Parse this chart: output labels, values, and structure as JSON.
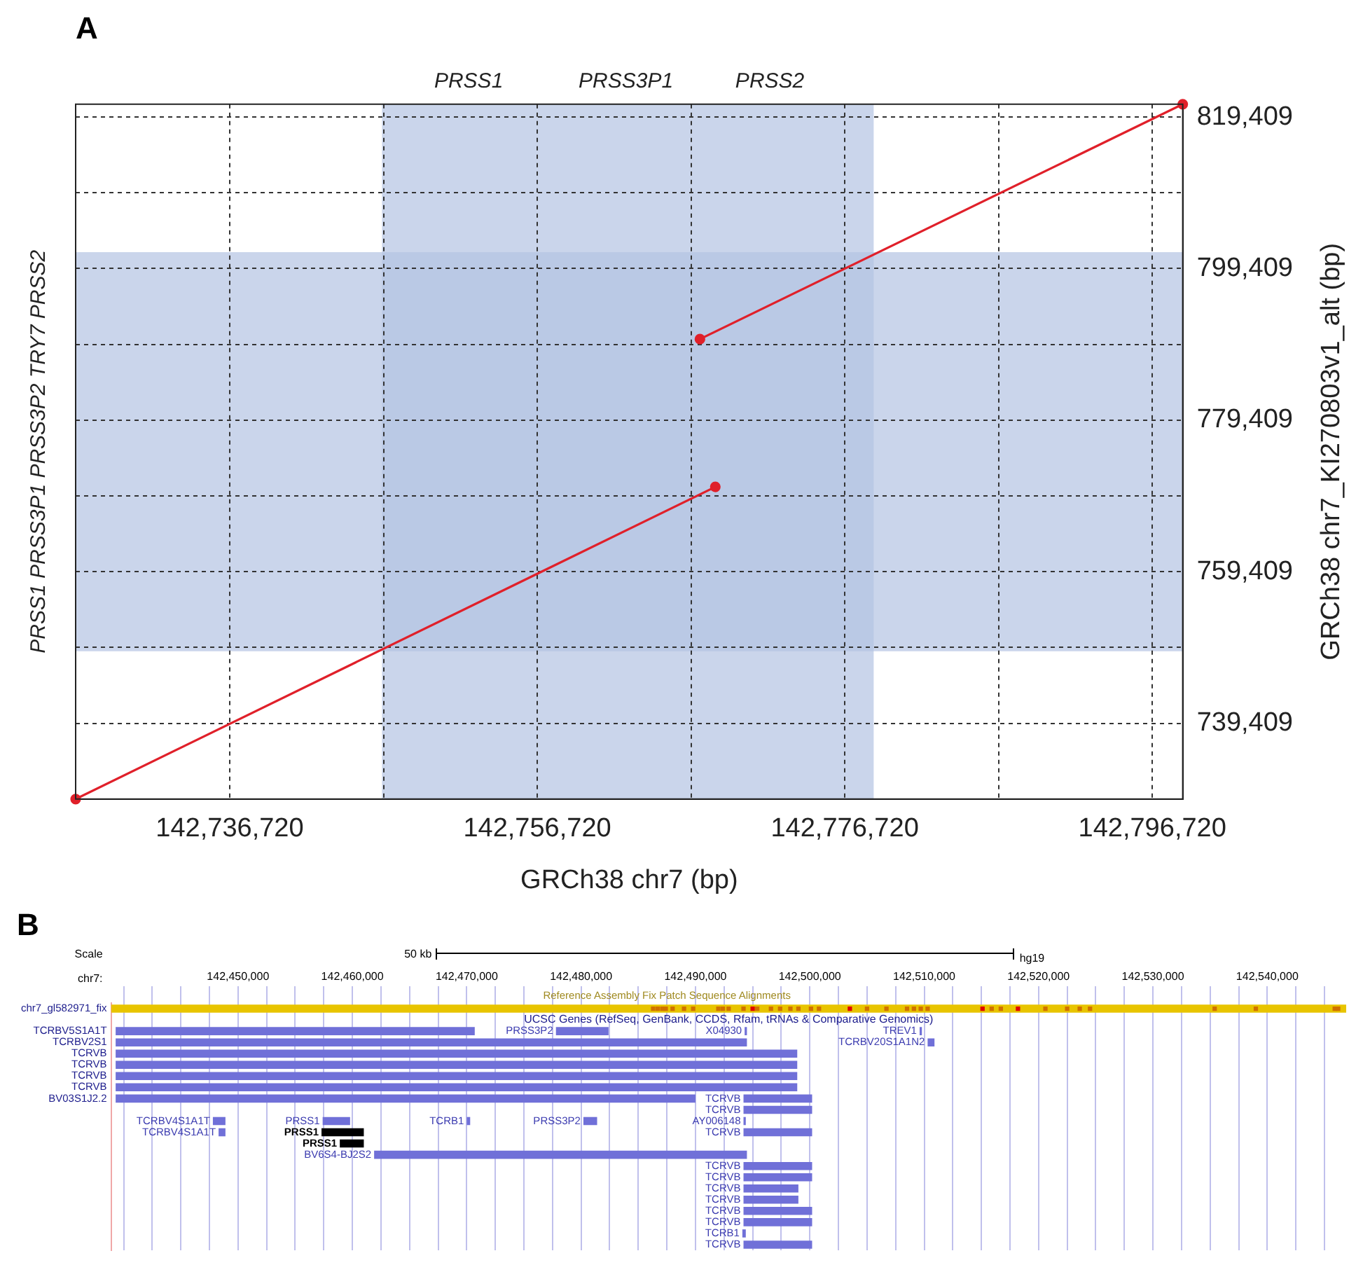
{
  "chart_data": [
    {
      "type": "line",
      "title": "A",
      "xlabel": "GRCh38 chr7 (bp)",
      "ylabel": "GRCh38 chr7_KI270803v1_alt (bp)",
      "series": [
        {
          "color": "#e0202a",
          "x": [
            142726700,
            142768300
          ],
          "values": [
            729400,
            770600
          ]
        },
        {
          "color": "#e0202a",
          "x": [
            142767300,
            142798700
          ],
          "values": [
            790100,
            821100
          ]
        }
      ],
      "marker": "circle",
      "xlim": [
        142726700,
        142798700
      ],
      "ylim": [
        729400,
        821100
      ],
      "xticks": [
        {
          "value": 142736720,
          "label": "142,736,720"
        },
        {
          "value": 142746720,
          "label": null
        },
        {
          "value": 142756720,
          "label": "142,756,720"
        },
        {
          "value": 142766720,
          "label": null
        },
        {
          "value": 142776720,
          "label": "142,776,720"
        },
        {
          "value": 142786720,
          "label": null
        },
        {
          "value": 142796720,
          "label": "142,796,720"
        }
      ],
      "yticks": [
        {
          "value": 739409,
          "label": "739,409"
        },
        {
          "value": 749409,
          "label": null
        },
        {
          "value": 759409,
          "label": "759,409"
        },
        {
          "value": 769409,
          "label": null
        },
        {
          "value": 779409,
          "label": "779,409"
        },
        {
          "value": 789409,
          "label": null
        },
        {
          "value": 799409,
          "label": "799,409"
        },
        {
          "value": 809409,
          "label": null
        },
        {
          "value": 819409,
          "label": "819,409"
        }
      ],
      "grid": true,
      "bands": [
        {
          "axis": "x",
          "from": 142746625,
          "to": 142778600,
          "color": "#b4c3e2"
        },
        {
          "axis": "y",
          "from": 748920,
          "to": 801575,
          "color": "#b4c3e2"
        }
      ],
      "annotations": [
        "PRSS1",
        "PRSS3P1",
        "PRSS2",
        "PRSS1 PRSS3P1 PRSS3P2 TRY7 PRSS2"
      ]
    },
    {
      "type": "bar",
      "orientation": "horizontal",
      "title": "B",
      "xlabel": "chr7:",
      "categories": [
        "chr7_gl582971_fix",
        null,
        "TCRBV5S1A1T",
        "TCRBV2S1",
        "TCRVB",
        "TCRVB",
        "TCRVB",
        "TCRVB",
        "BV03S1J2.2",
        null,
        null,
        null,
        null,
        null,
        null,
        null,
        null,
        null,
        null,
        null,
        null,
        null
      ],
      "series": [
        {
          "base": [
            142438900,
            null,
            142439300,
            142439300,
            142439300,
            142439300,
            142439300,
            142439300,
            142439300,
            142494200,
            142447800,
            142448300,
            142458900,
            142461900,
            142494200,
            142494200,
            142494200,
            142494200,
            142494200,
            142494200,
            142494100,
            142494200
          ],
          "values": [
            108000,
            null,
            31400,
            55200,
            59600,
            59600,
            59600,
            59600,
            50700,
            6000,
            1100,
            600,
            2100,
            32600,
            6000,
            6000,
            4800,
            4800,
            6000,
            6000,
            300,
            6000
          ],
          "colors": [
            "#e8c400",
            null,
            "#7070d8",
            "#7070d8",
            "#7070d8",
            "#7070d8",
            "#7070d8",
            "#7070d8",
            "#7070d8",
            "#7070d8",
            "#7070d8",
            "#7070d8",
            "#000000",
            "#7070d8",
            "#7070d8",
            "#7070d8",
            "#7070d8",
            "#7070d8",
            "#7070d8",
            "#7070d8",
            "#7070d8",
            "#7070d8"
          ],
          "value_labels": [
            null,
            null,
            null,
            null,
            null,
            null,
            null,
            null,
            null,
            "TCRVB",
            "TCRBV4S1A1T",
            "TCRBV4S1A1T",
            "PRSS1",
            "BV6S4-BJ2S2",
            "TCRVB",
            "TCRVB",
            "TCRVB",
            "TCRVB",
            "TCRVB",
            "TCRVB",
            "TCRB1",
            "TCRVB"
          ]
        },
        {
          "base": [
            null,
            null,
            142477800,
            142510300,
            null,
            null,
            null,
            null,
            142494200,
            null,
            142457400,
            142457300,
            null,
            null,
            null,
            null,
            null,
            null,
            null,
            null,
            null,
            null
          ],
          "values": [
            null,
            null,
            4600,
            600,
            null,
            null,
            null,
            null,
            6000,
            null,
            2400,
            3700,
            null,
            null,
            null,
            null,
            null,
            null,
            null,
            null,
            null,
            null
          ],
          "colors": [
            null,
            null,
            "#7070d8",
            "#7070d8",
            null,
            null,
            null,
            null,
            "#7070d8",
            null,
            "#7070d8",
            "#000000",
            null,
            null,
            null,
            null,
            null,
            null,
            null,
            null,
            null,
            null
          ],
          "value_labels": [
            null,
            null,
            "PRSS3P2",
            "TCRBV20S1A1N2",
            null,
            null,
            null,
            null,
            "TCRVB",
            null,
            "PRSS1",
            "PRSS1",
            null,
            null,
            null,
            null,
            null,
            null,
            null,
            null,
            null,
            null
          ]
        },
        {
          "base": [
            null,
            null,
            142494300,
            null,
            null,
            null,
            null,
            null,
            null,
            null,
            142470000,
            142494200,
            null,
            null,
            null,
            null,
            null,
            null,
            null,
            null,
            null,
            null
          ],
          "values": [
            null,
            null,
            200,
            null,
            null,
            null,
            null,
            null,
            null,
            null,
            300,
            6000,
            null,
            null,
            null,
            null,
            null,
            null,
            null,
            null,
            null,
            null
          ],
          "colors": [
            null,
            null,
            "#7070d8",
            null,
            null,
            null,
            null,
            null,
            null,
            null,
            "#7070d8",
            "#7070d8",
            null,
            null,
            null,
            null,
            null,
            null,
            null,
            null,
            null,
            null
          ],
          "value_labels": [
            null,
            null,
            "X04930",
            null,
            null,
            null,
            null,
            null,
            null,
            null,
            "TCRB1",
            "TCRVB",
            null,
            null,
            null,
            null,
            null,
            null,
            null,
            null,
            null,
            null
          ]
        },
        {
          "base": [
            null,
            null,
            142509600,
            null,
            null,
            null,
            null,
            null,
            null,
            null,
            142480200,
            null,
            null,
            null,
            null,
            null,
            null,
            null,
            null,
            null,
            null,
            null
          ],
          "values": [
            null,
            null,
            200,
            null,
            null,
            null,
            null,
            null,
            null,
            null,
            1200,
            null,
            null,
            null,
            null,
            null,
            null,
            null,
            null,
            null,
            null,
            null
          ],
          "colors": [
            null,
            null,
            "#7070d8",
            null,
            null,
            null,
            null,
            null,
            null,
            null,
            "#7070d8",
            null,
            null,
            null,
            null,
            null,
            null,
            null,
            null,
            null,
            null,
            null
          ],
          "value_labels": [
            null,
            null,
            "TREV1",
            null,
            null,
            null,
            null,
            null,
            null,
            null,
            "PRSS3P2",
            null,
            null,
            null,
            null,
            null,
            null,
            null,
            null,
            null,
            null,
            null
          ]
        },
        {
          "base": [
            null,
            null,
            null,
            null,
            null,
            null,
            null,
            null,
            null,
            null,
            142494200,
            null,
            null,
            null,
            null,
            null,
            null,
            null,
            null,
            null,
            null,
            null
          ],
          "values": [
            null,
            null,
            null,
            null,
            null,
            null,
            null,
            null,
            null,
            null,
            200,
            null,
            null,
            null,
            null,
            null,
            null,
            null,
            null,
            null,
            null,
            null
          ],
          "colors": [
            null,
            null,
            null,
            null,
            null,
            null,
            null,
            null,
            null,
            null,
            "#7070d8",
            null,
            null,
            null,
            null,
            null,
            null,
            null,
            null,
            null,
            null,
            null
          ],
          "value_labels": [
            null,
            null,
            null,
            null,
            null,
            null,
            null,
            null,
            null,
            null,
            "AY006148",
            null,
            null,
            null,
            null,
            null,
            null,
            null,
            null,
            null,
            null,
            null
          ]
        },
        {
          "type": "scatter",
          "marker": "square",
          "x": [
            "chr7_gl582971_fix",
            "chr7_gl582971_fix",
            "chr7_gl582971_fix",
            "chr7_gl582971_fix",
            "chr7_gl582971_fix",
            "chr7_gl582971_fix",
            "chr7_gl582971_fix",
            "chr7_gl582971_fix",
            "chr7_gl582971_fix",
            "chr7_gl582971_fix",
            "chr7_gl582971_fix",
            "chr7_gl582971_fix",
            "chr7_gl582971_fix",
            "chr7_gl582971_fix",
            "chr7_gl582971_fix",
            "chr7_gl582971_fix",
            "chr7_gl582971_fix",
            "chr7_gl582971_fix",
            "chr7_gl582971_fix",
            "chr7_gl582971_fix",
            "chr7_gl582971_fix",
            "chr7_gl582971_fix",
            "chr7_gl582971_fix",
            "chr7_gl582971_fix",
            "chr7_gl582971_fix",
            "chr7_gl582971_fix",
            "chr7_gl582971_fix",
            "chr7_gl582971_fix",
            "chr7_gl582971_fix",
            "chr7_gl582971_fix",
            "chr7_gl582971_fix",
            "chr7_gl582971_fix",
            "chr7_gl582971_fix",
            "chr7_gl582971_fix",
            "chr7_gl582971_fix",
            "chr7_gl582971_fix",
            "chr7_gl582971_fix",
            "chr7_gl582971_fix"
          ],
          "values": [
            142486300,
            142486700,
            142487100,
            142487400,
            142488000,
            142489000,
            142489800,
            142492000,
            142492400,
            142492900,
            142494200,
            142495000,
            142495400,
            142496600,
            142497400,
            142498300,
            142499000,
            142500100,
            142500800,
            142503500,
            142505000,
            142506700,
            142508500,
            142509100,
            142509700,
            142510300,
            142515100,
            142515900,
            142516700,
            142518200,
            142520600,
            142522500,
            142523600,
            142524500,
            142535400,
            142539000,
            142545900,
            142546200
          ],
          "colors": [
            "#d07000",
            "#d07000",
            "#d07000",
            "#d07000",
            "#d07000",
            "#d07000",
            "#d07000",
            "#d07000",
            "#d07000",
            "#d07000",
            "#d07000",
            "#e00000",
            "#d07000",
            "#d07000",
            "#d07000",
            "#d07000",
            "#d07000",
            "#d07000",
            "#d07000",
            "#e00000",
            "#d07000",
            "#d07000",
            "#d07000",
            "#d07000",
            "#d07000",
            "#d07000",
            "#e00000",
            "#d07000",
            "#d07000",
            "#e00000",
            "#d07000",
            "#d07000",
            "#d07000",
            "#d07000",
            "#d07000",
            "#d07000",
            "#d07000",
            "#d07000"
          ]
        }
      ],
      "stacked": false,
      "xlim": [
        142438900,
        142546900
      ],
      "xticks": [
        {
          "value": 142440000,
          "label": null
        },
        {
          "value": 142442500,
          "label": null
        },
        {
          "value": 142445000,
          "label": null
        },
        {
          "value": 142447500,
          "label": null
        },
        {
          "value": 142450000,
          "label": "142,450,000"
        },
        {
          "value": 142452500,
          "label": null
        },
        {
          "value": 142455000,
          "label": null
        },
        {
          "value": 142457500,
          "label": null
        },
        {
          "value": 142460000,
          "label": "142,460,000"
        },
        {
          "value": 142462500,
          "label": null
        },
        {
          "value": 142465000,
          "label": null
        },
        {
          "value": 142467500,
          "label": null
        },
        {
          "value": 142470000,
          "label": "142,470,000"
        },
        {
          "value": 142472500,
          "label": null
        },
        {
          "value": 142475000,
          "label": null
        },
        {
          "value": 142477500,
          "label": null
        },
        {
          "value": 142480000,
          "label": "142,480,000"
        },
        {
          "value": 142482500,
          "label": null
        },
        {
          "value": 142485000,
          "label": null
        },
        {
          "value": 142487500,
          "label": null
        },
        {
          "value": 142490000,
          "label": "142,490,000"
        },
        {
          "value": 142492500,
          "label": null
        },
        {
          "value": 142495000,
          "label": null
        },
        {
          "value": 142497500,
          "label": null
        },
        {
          "value": 142500000,
          "label": "142,500,000"
        },
        {
          "value": 142502500,
          "label": null
        },
        {
          "value": 142505000,
          "label": null
        },
        {
          "value": 142507500,
          "label": null
        },
        {
          "value": 142510000,
          "label": "142,510,000"
        },
        {
          "value": 142512500,
          "label": null
        },
        {
          "value": 142515000,
          "label": null
        },
        {
          "value": 142517500,
          "label": null
        },
        {
          "value": 142520000,
          "label": "142,520,000"
        },
        {
          "value": 142522500,
          "label": null
        },
        {
          "value": 142525000,
          "label": null
        },
        {
          "value": 142527500,
          "label": null
        },
        {
          "value": 142530000,
          "label": "142,530,000"
        },
        {
          "value": 142532500,
          "label": null
        },
        {
          "value": 142535000,
          "label": null
        },
        {
          "value": 142537500,
          "label": null
        },
        {
          "value": 142540000,
          "label": "142,540,000"
        },
        {
          "value": 142542500,
          "label": null
        },
        {
          "value": 142545000,
          "label": null
        }
      ],
      "grid": "x",
      "annotations": [
        "Scale",
        "50 kb",
        "hg19",
        "Reference Assembly Fix Patch Sequence Alignments",
        "UCSC Genes (RefSeq, GenBank, CCDS, Rfam, tRNAs & Comparative Genomics)"
      ]
    }
  ]
}
